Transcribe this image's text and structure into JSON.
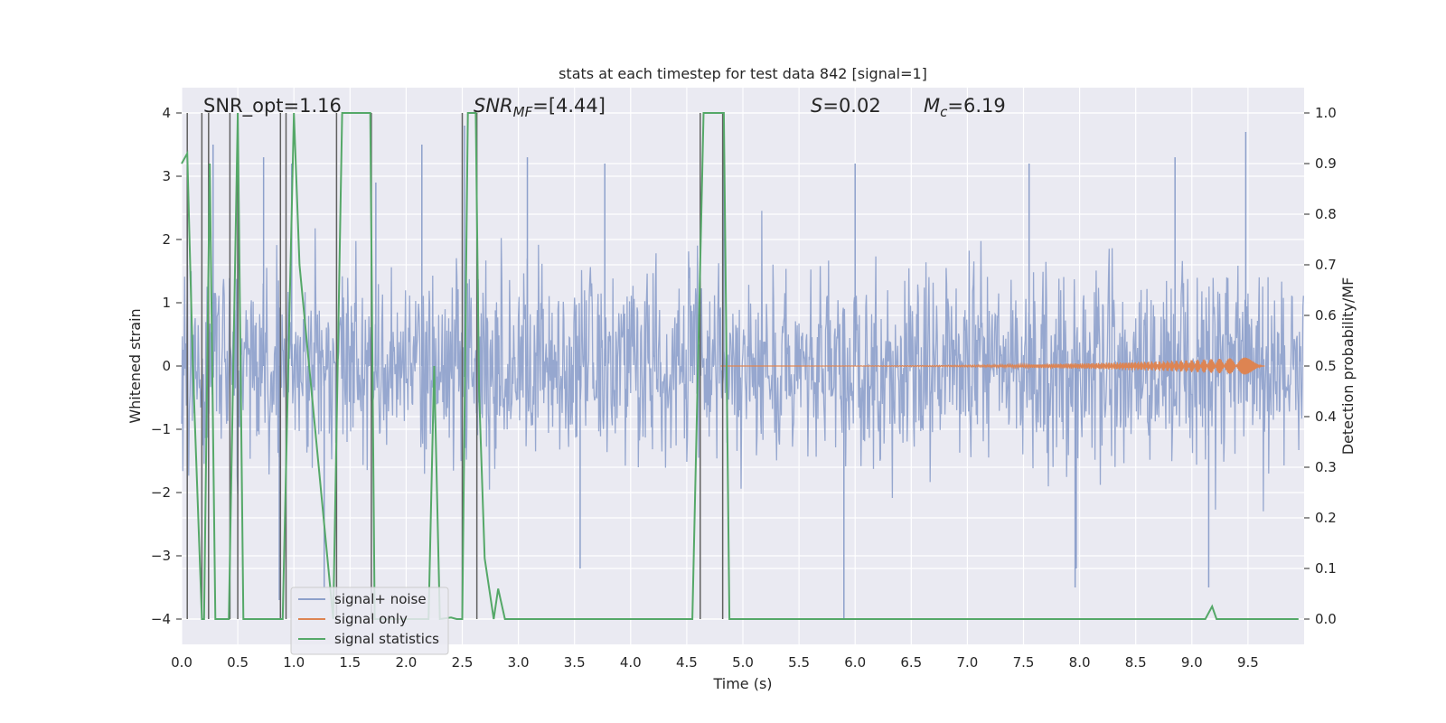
{
  "chart_data": {
    "type": "line",
    "title": "stats at each timestep for test data 842 [signal=1]",
    "xlabel": "Time (s)",
    "ylabel_left": "Whitened strain",
    "ylabel_right": "Detection probability/MF",
    "xlim": [
      0,
      10
    ],
    "ylim_left": [
      -4.4,
      4.4
    ],
    "ylim_right": [
      -0.05,
      1.05
    ],
    "x_ticks": [
      "0.0",
      "0.5",
      "1.0",
      "1.5",
      "2.0",
      "2.5",
      "3.0",
      "3.5",
      "4.0",
      "4.5",
      "5.0",
      "5.5",
      "6.0",
      "6.5",
      "7.0",
      "7.5",
      "8.0",
      "8.5",
      "9.0",
      "9.5"
    ],
    "y_ticks_left": [
      "−4",
      "−3",
      "−2",
      "−1",
      "0",
      "1",
      "2",
      "3",
      "4"
    ],
    "y_ticks_right": [
      "0.0",
      "0.1",
      "0.2",
      "0.3",
      "0.4",
      "0.5",
      "0.6",
      "0.7",
      "0.8",
      "0.9",
      "1.0"
    ],
    "grid": true,
    "background": "#eaeaf2",
    "annotations": {
      "snr_opt": "SNR_opt=1.16",
      "snr_mf_sym": "SNR",
      "snr_mf_sub": "MF",
      "snr_mf_val": "=[4.44]",
      "s_sym": "S",
      "s_val": "=0.02",
      "mc_sym": "M",
      "mc_sub": "c",
      "mc_val": "=6.19"
    },
    "legend": {
      "placement": "lower-left",
      "items": [
        "signal+ noise",
        "signal only",
        "signal statistics"
      ]
    },
    "colors": {
      "signal_noise": "#8da0cb",
      "signal_only": "#dd8452",
      "statistics": "#55a868",
      "vlines": "#606060"
    },
    "series": [
      {
        "name": "signal+ noise",
        "description_free": true,
        "envelope_typical": 1.6,
        "peaks": [
          {
            "t": 0.05,
            "v": 2.4
          },
          {
            "t": 0.28,
            "v": 3.5
          },
          {
            "t": 0.5,
            "v": 4.0
          },
          {
            "t": 0.73,
            "v": 3.3
          },
          {
            "t": 0.98,
            "v": 3.2
          },
          {
            "t": 1.73,
            "v": 2.9
          },
          {
            "t": 2.14,
            "v": 3.5
          },
          {
            "t": 2.52,
            "v": 3.8
          },
          {
            "t": 3.08,
            "v": 3.3
          },
          {
            "t": 3.77,
            "v": 3.2
          },
          {
            "t": 4.83,
            "v": 4.0
          },
          {
            "t": 6.0,
            "v": 3.2
          },
          {
            "t": 7.55,
            "v": 3.2
          },
          {
            "t": 8.85,
            "v": 3.3
          },
          {
            "t": 9.48,
            "v": 3.7
          },
          {
            "t": 0.87,
            "v": -3.7
          },
          {
            "t": 1.27,
            "v": -3.5
          },
          {
            "t": 3.55,
            "v": -3.2
          },
          {
            "t": 5.9,
            "v": -4.0
          },
          {
            "t": 7.97,
            "v": -3.2
          },
          {
            "t": 7.96,
            "v": -3.5
          },
          {
            "t": 9.15,
            "v": -3.5
          }
        ]
      },
      {
        "name": "signal only",
        "chirp_start": 4.8,
        "chirp_end": 9.65,
        "final_amplitude": 0.15
      },
      {
        "name": "signal statistics",
        "x": [
          0.0,
          0.05,
          0.1,
          0.18,
          0.2,
          0.25,
          0.3,
          0.38,
          0.42,
          0.5,
          0.55,
          0.88,
          0.9,
          1.0,
          1.05,
          1.35,
          1.43,
          1.68,
          1.72,
          2.1,
          2.2,
          2.25,
          2.3,
          2.4,
          2.45,
          2.5,
          2.55,
          2.58,
          2.62,
          2.65,
          2.7,
          2.78,
          2.82,
          2.88,
          4.55,
          4.65,
          4.83,
          4.88,
          9.12,
          9.18,
          9.22,
          9.95
        ],
        "y": [
          0.9,
          0.92,
          0.5,
          0.0,
          0.0,
          0.9,
          0.0,
          0.0,
          0.0,
          1.0,
          0.0,
          0.0,
          0.0,
          1.0,
          0.7,
          0.0,
          1.0,
          1.0,
          0.0,
          0.0,
          0.0,
          0.5,
          0.0,
          0.003,
          0.0,
          0.0,
          1.0,
          1.0,
          1.0,
          0.45,
          0.12,
          0.0,
          0.06,
          0.0,
          0.0,
          1.0,
          1.0,
          0.0,
          0.0,
          0.025,
          0.0,
          0.0
        ]
      }
    ],
    "vertical_lines": [
      0.05,
      0.18,
      0.24,
      0.43,
      0.5,
      0.88,
      0.93,
      1.38,
      1.69,
      2.5,
      2.63,
      4.62,
      4.82
    ]
  }
}
